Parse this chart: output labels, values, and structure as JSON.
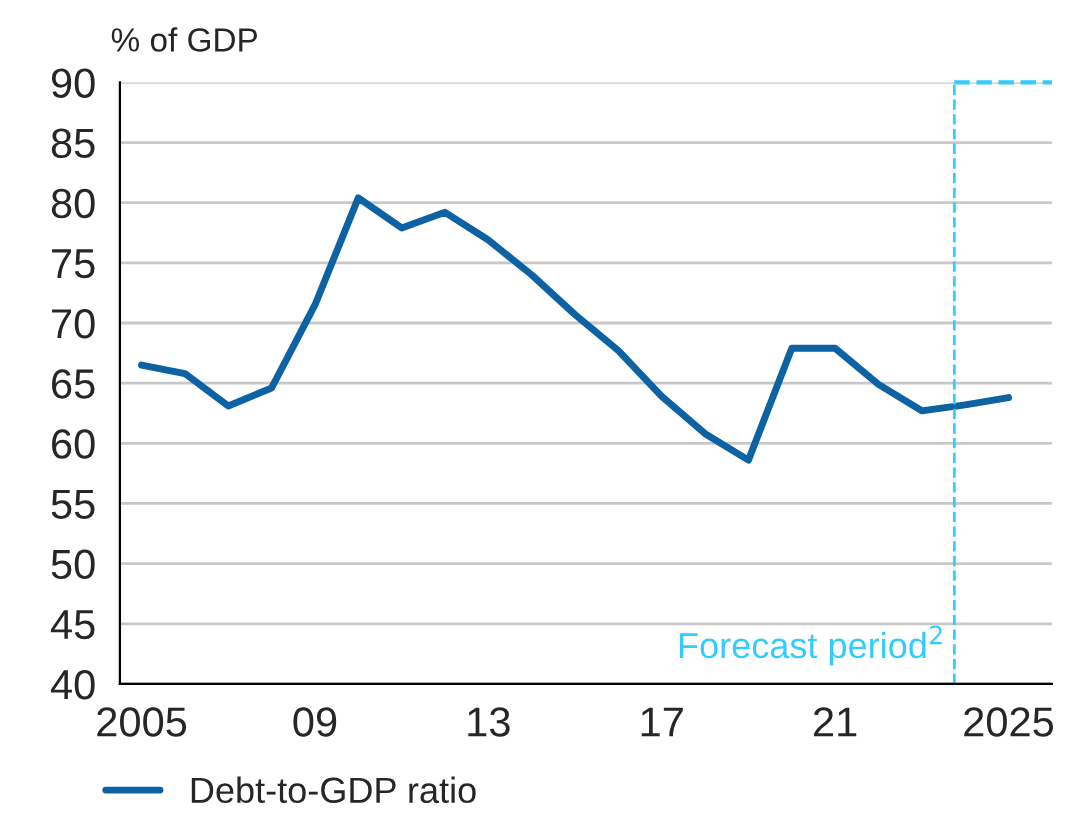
{
  "chart_data": {
    "type": "line",
    "ylabel": "% of GDP",
    "x": [
      2005,
      2006,
      2007,
      2008,
      2009,
      2010,
      2011,
      2012,
      2013,
      2014,
      2015,
      2016,
      2017,
      2018,
      2019,
      2020,
      2021,
      2022,
      2023,
      2024,
      2025
    ],
    "series": [
      {
        "name": "Debt-to-GDP ratio",
        "color": "#0d62a3",
        "values": [
          66.5,
          65.8,
          63.1,
          64.6,
          71.5,
          80.4,
          77.9,
          79.2,
          76.9,
          74.0,
          70.7,
          67.7,
          63.9,
          60.8,
          58.6,
          67.9,
          67.9,
          64.9,
          62.7,
          63.2,
          63.8
        ]
      }
    ],
    "xlim": [
      2004.5,
      2026.0
    ],
    "xticks": [
      {
        "value": 2005,
        "label": "2005"
      },
      {
        "value": 2009,
        "label": "09"
      },
      {
        "value": 2013,
        "label": "13"
      },
      {
        "value": 2017,
        "label": "17"
      },
      {
        "value": 2021,
        "label": "21"
      },
      {
        "value": 2025,
        "label": "2025"
      }
    ],
    "ylim": [
      40,
      90
    ],
    "yticks": [
      40,
      45,
      50,
      55,
      60,
      65,
      70,
      75,
      80,
      85,
      90
    ],
    "ref_lines": [
      {
        "axis": "x",
        "value": 2023.75,
        "label": "Forecast period$^{2}$",
        "color": "#33ccff",
        "line_style": "dashed"
      }
    ],
    "grid": "y",
    "legend": "bottom left",
    "line_style": "solid",
    "marker": "none"
  }
}
